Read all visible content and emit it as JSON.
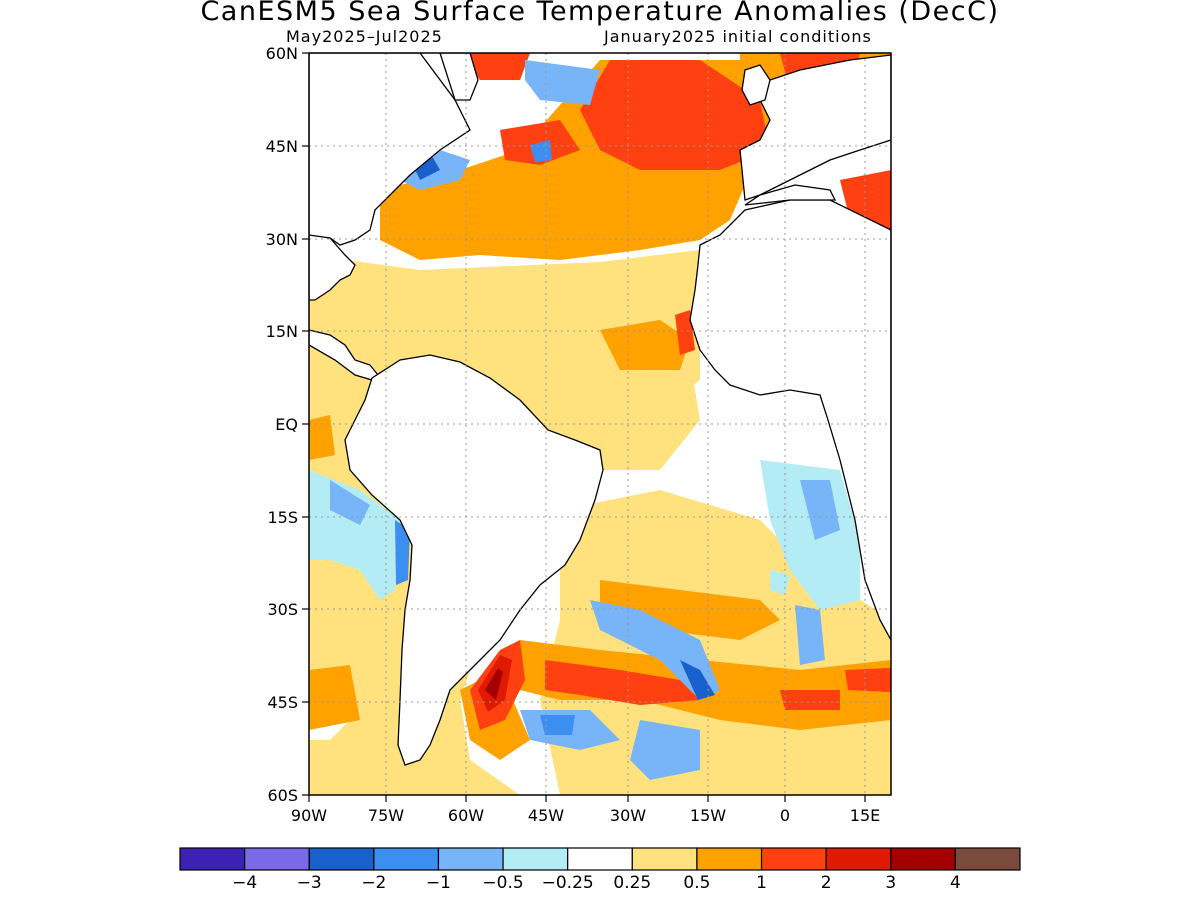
{
  "title": "CanESM5 Sea Surface Temperature Anomalies (DecC)",
  "subtitle_left": "May2025–Jul2025",
  "subtitle_right": "January2025 initial conditions",
  "map": {
    "region": "Atlantic Ocean",
    "lon_range": [
      -90,
      22
    ],
    "lat_range": [
      -60,
      60
    ],
    "lat_ticks": [
      "60N",
      "45N",
      "30N",
      "15N",
      "EQ",
      "15S",
      "30S",
      "45S",
      "60S"
    ],
    "lon_ticks": [
      "90W",
      "75W",
      "60W",
      "45W",
      "30W",
      "15W",
      "0",
      "15E"
    ],
    "grid": "dotted"
  },
  "colorbar": {
    "colors": [
      "#3b22b5",
      "#7a6aea",
      "#1960cc",
      "#3c8ff0",
      "#78b4f8",
      "#b4ecf6",
      "#ffffff",
      "#ffe27e",
      "#ffa200",
      "#ff4010",
      "#e01a00",
      "#a50000",
      "#7a4a3c"
    ],
    "labels": [
      "−4",
      "−3",
      "−2",
      "−1",
      "−0.5",
      "−0.25",
      "0.25",
      "0.5",
      "1",
      "2",
      "3",
      "4"
    ]
  }
}
